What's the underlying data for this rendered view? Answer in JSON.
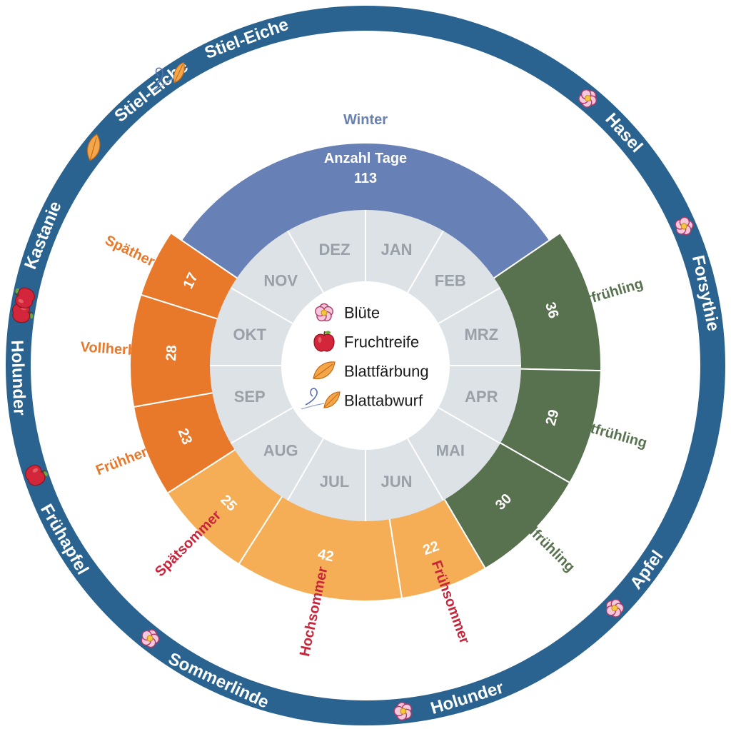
{
  "winter_days_header": "Anzahl Tage",
  "months": [
    "JAN",
    "FEB",
    "MRZ",
    "APR",
    "MAI",
    "JUN",
    "JUL",
    "AUG",
    "SEP",
    "OKT",
    "NOV",
    "DEZ"
  ],
  "seasons": [
    {
      "name": "Vorfrühling",
      "days": 36,
      "color": "#58724f",
      "label_color": "#58724f",
      "text_color": "#ffffff"
    },
    {
      "name": "Erstfrühling",
      "days": 29,
      "color": "#58724f",
      "label_color": "#58724f",
      "text_color": "#ffffff"
    },
    {
      "name": "Vollfrühling",
      "days": 30,
      "color": "#58724f",
      "label_color": "#58724f",
      "text_color": "#ffffff"
    },
    {
      "name": "Frühsommer",
      "days": 22,
      "color": "#f5ae55",
      "label_color": "#c8243a",
      "text_color": "#c8243a"
    },
    {
      "name": "Hochsommer",
      "days": 42,
      "color": "#f5ae55",
      "label_color": "#c8243a",
      "text_color": "#c8243a"
    },
    {
      "name": "Spätsommer",
      "days": 25,
      "color": "#f5ae55",
      "label_color": "#c8243a",
      "text_color": "#c8243a"
    },
    {
      "name": "Frühherbst",
      "days": 23,
      "color": "#e8782a",
      "label_color": "#e8782a",
      "text_color": "#ffffff"
    },
    {
      "name": "Vollherbst",
      "days": 28,
      "color": "#e8782a",
      "label_color": "#e8782a",
      "text_color": "#ffffff"
    },
    {
      "name": "Spätherbst",
      "days": 17,
      "color": "#e8782a",
      "label_color": "#e8782a",
      "text_color": "#ffffff"
    },
    {
      "name": "Winter",
      "days": 113,
      "color": "#6780b5",
      "label_color": "#6780b5",
      "text_color": "#ffffff"
    }
  ],
  "plants": [
    {
      "name": "Hasel",
      "icon": "blossom"
    },
    {
      "name": "Forsythie",
      "icon": "blossom"
    },
    {
      "name": "Apfel",
      "icon": "blossom"
    },
    {
      "name": "Holunder",
      "icon": "blossom"
    },
    {
      "name": "Sommerlinde",
      "icon": "blossom"
    },
    {
      "name": "Frühapfel",
      "icon": "fruit"
    },
    {
      "name": "Holunder",
      "icon": "fruit"
    },
    {
      "name": "Kastanie",
      "icon": "fruit"
    },
    {
      "name": "Stiel-Eiche",
      "icon": "leaf"
    },
    {
      "name": "Stiel-Eiche",
      "icon": "leaf-fall"
    }
  ],
  "legend": [
    {
      "label": "Blüte",
      "icon": "blossom"
    },
    {
      "label": "Fruchtreife",
      "icon": "fruit"
    },
    {
      "label": "Blattfärbung",
      "icon": "leaf"
    },
    {
      "label": "Blattabwurf",
      "icon": "leaf-fall"
    }
  ],
  "colors": {
    "outer_ring": "#2b6390",
    "month_ring": "#dde2e7"
  }
}
